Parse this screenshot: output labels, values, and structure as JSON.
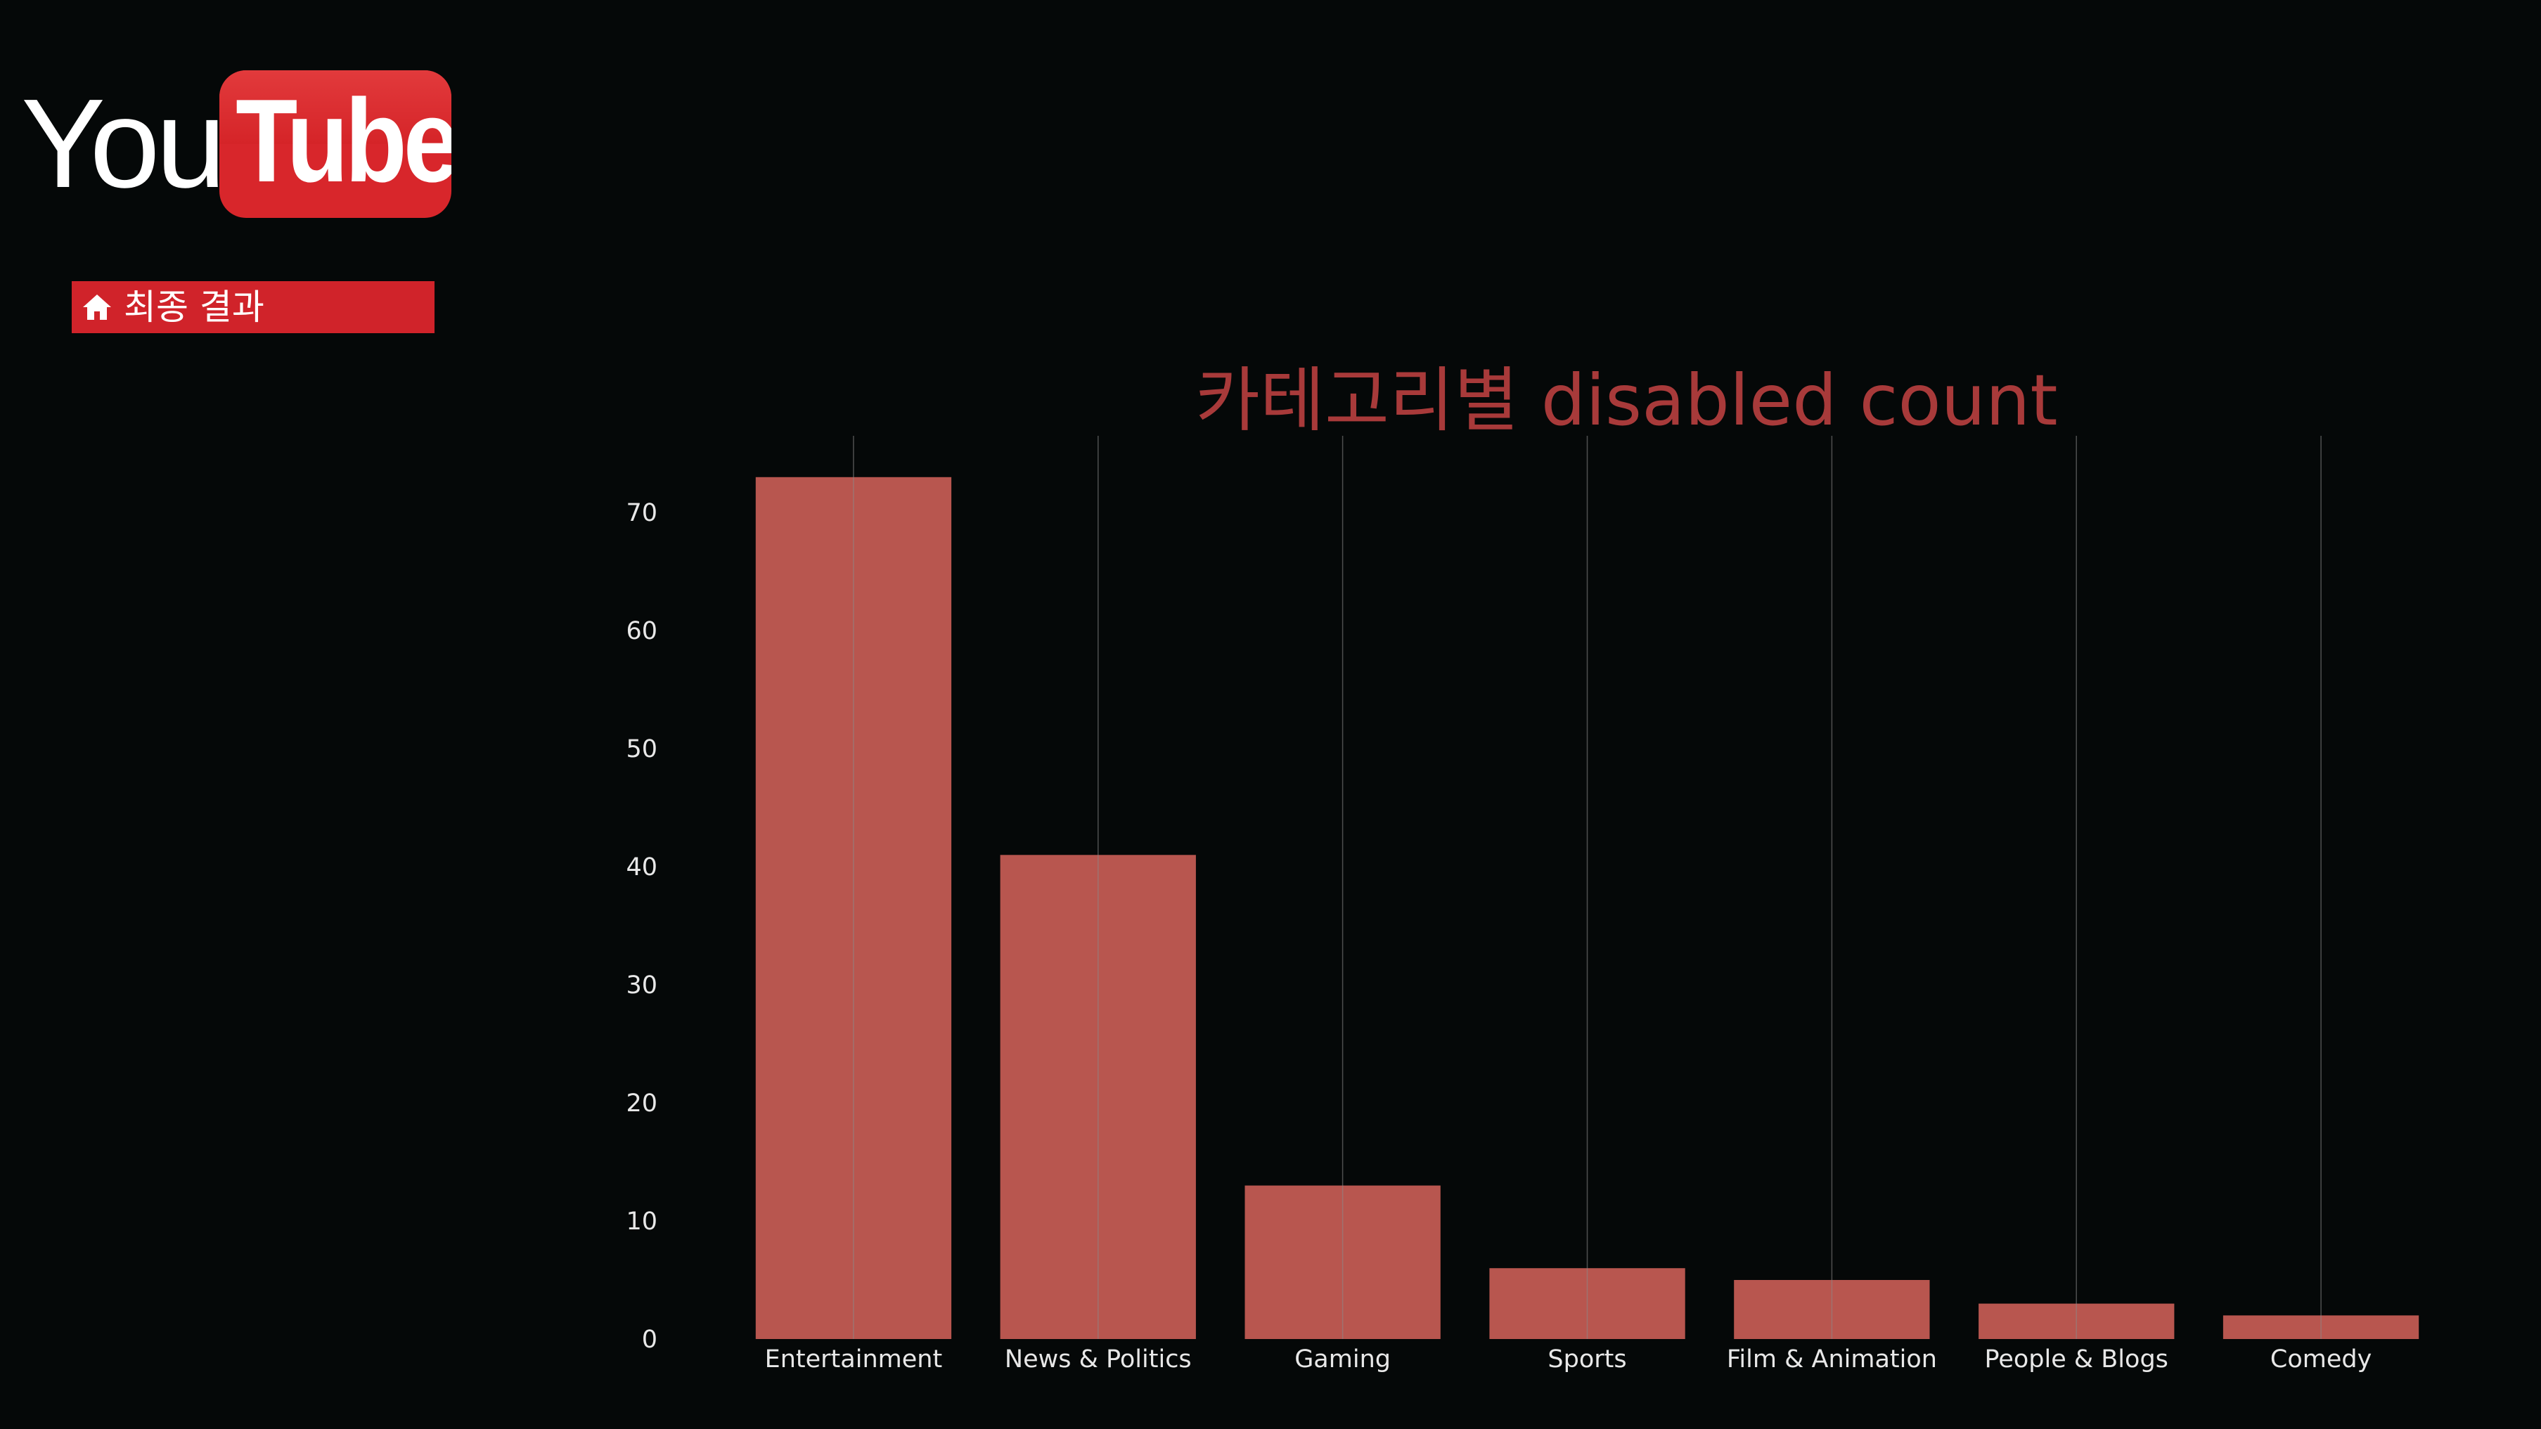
{
  "logo": {
    "you": "You",
    "tube": "Tube"
  },
  "nav": {
    "home_label": "최종 결과",
    "home_icon": "home-icon"
  },
  "colors": {
    "background": "#050808",
    "bar": "#b8564f",
    "title": "#a83a3a",
    "badge": "#d0232a"
  },
  "chart_data": {
    "type": "bar",
    "title": "카테고리별 disabled count",
    "xlabel": "",
    "ylabel": "",
    "categories": [
      "Entertainment",
      "News & Politics",
      "Gaming",
      "Sports",
      "Film & Animation",
      "People & Blogs",
      "Comedy"
    ],
    "values": [
      73,
      41,
      13,
      6,
      5,
      3,
      2
    ],
    "yticks": [
      0,
      10,
      20,
      30,
      40,
      50,
      60,
      70
    ],
    "ylim": [
      0,
      76.5
    ],
    "grid": "vertical",
    "legend": "none"
  }
}
